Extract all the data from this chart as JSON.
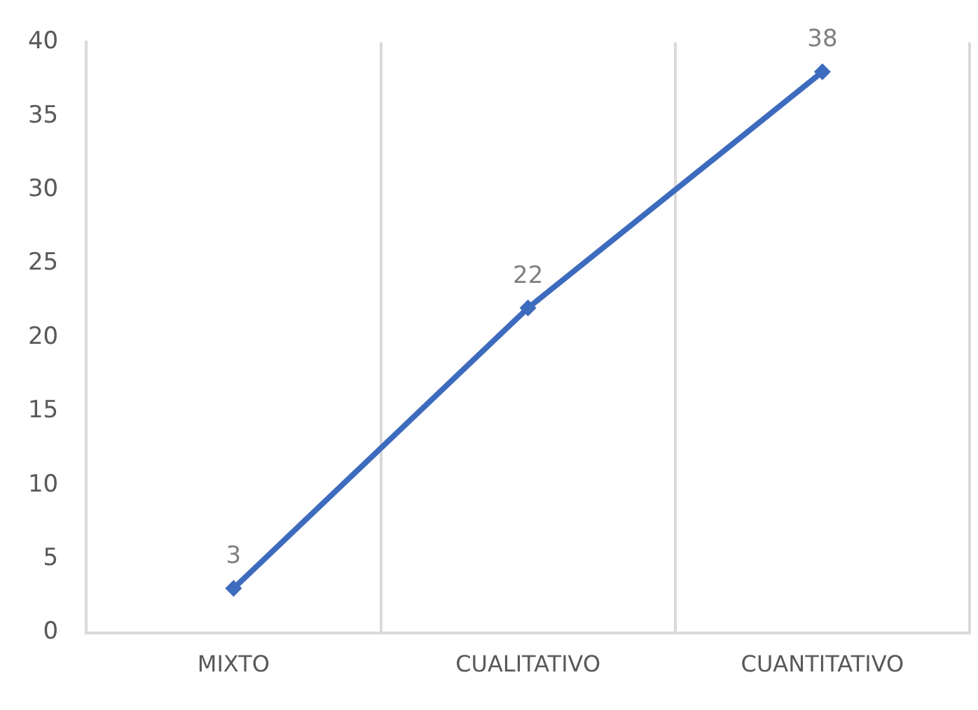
{
  "chart_data": {
    "type": "line",
    "categories": [
      "MIXTO",
      "CUALITATIVO",
      "CUANTITATIVO"
    ],
    "series": [
      {
        "color": "#3d6bbd",
        "values": [
          3,
          22,
          38
        ]
      }
    ],
    "ylim": [
      0,
      40
    ],
    "yticks": [
      0,
      5,
      10,
      15,
      20,
      25,
      30,
      35,
      40
    ],
    "grid": "x",
    "marker": "diamond",
    "line_style": "solid",
    "data_labels": true,
    "legend": false
  }
}
